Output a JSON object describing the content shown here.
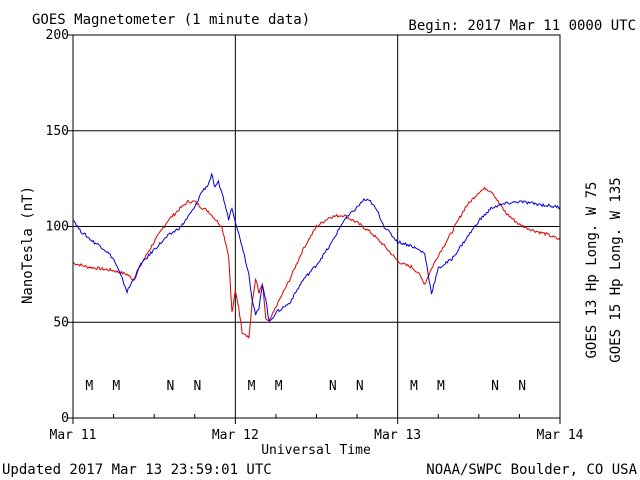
{
  "header": {
    "title": "GOES Magnetometer (1 minute data)",
    "begin": "Begin:  2017 Mar 11 0000 UTC"
  },
  "footer": {
    "updated": "Updated 2017 Mar 13 23:59:01 UTC",
    "source": "NOAA/SWPC Boulder, CO USA"
  },
  "colors": {
    "goes13": "#dd0000",
    "goes15": "#0000dd",
    "grid": "#000000"
  },
  "chart_data": {
    "type": "line",
    "title": "GOES Magnetometer (1 minute data)",
    "xlabel": "Universal Time",
    "ylabel": "NanoTesla (nT)",
    "xlim": [
      0,
      72
    ],
    "ylim": [
      0,
      200
    ],
    "x_unit": "hours since 2017 Mar 11 0000 UTC",
    "x_ticks": [
      {
        "value": 0,
        "label": "Mar 11"
      },
      {
        "value": 24,
        "label": "Mar 12"
      },
      {
        "value": 48,
        "label": "Mar 13"
      },
      {
        "value": 72,
        "label": "Mar 14"
      }
    ],
    "y_ticks": [
      0,
      50,
      100,
      150,
      200
    ],
    "grid": true,
    "series": [
      {
        "name": "GOES 13 Hp  Long. W 75",
        "color": "#dd0000",
        "x": [
          0,
          2,
          4,
          6,
          8,
          9,
          10,
          12,
          14,
          16,
          17,
          18,
          19,
          20,
          21,
          22,
          23,
          23.5,
          24,
          24.5,
          25,
          25.5,
          26,
          26.5,
          27,
          27.5,
          28,
          28.5,
          29,
          30,
          32,
          34,
          36,
          38,
          40,
          42,
          44,
          46,
          48,
          49,
          50,
          51,
          52,
          53,
          54,
          56,
          58,
          60,
          61,
          62,
          63,
          64,
          66,
          68,
          70,
          72
        ],
        "values": [
          81,
          79,
          78,
          77,
          75,
          72,
          80,
          92,
          103,
          110,
          113,
          113,
          110,
          108,
          104,
          100,
          85,
          55,
          66,
          58,
          45,
          44,
          42,
          60,
          73,
          65,
          70,
          52,
          50,
          58,
          72,
          88,
          100,
          105,
          106,
          102,
          97,
          90,
          82,
          80,
          79,
          76,
          70,
          78,
          85,
          97,
          110,
          118,
          120,
          118,
          112,
          107,
          101,
          98,
          96,
          93
        ]
      },
      {
        "name": "GOES 15 Hp  Long. W 135",
        "color": "#0000dd",
        "x": [
          0,
          1,
          2,
          3,
          4,
          5,
          6,
          7,
          8,
          10,
          12,
          14,
          16,
          18,
          19,
          20,
          20.5,
          21,
          21.5,
          22,
          23,
          23.5,
          24,
          24.5,
          25,
          26,
          26.5,
          27,
          27.5,
          28,
          28.5,
          29,
          30,
          32,
          34,
          36,
          38,
          40,
          42,
          43,
          44,
          45,
          46,
          48,
          50,
          52,
          53,
          54,
          56,
          58,
          60,
          62,
          64,
          66,
          68,
          70,
          72
        ],
        "values": [
          104,
          98,
          95,
          92,
          90,
          87,
          83,
          75,
          66,
          80,
          88,
          95,
          100,
          110,
          118,
          122,
          127,
          120,
          123,
          118,
          104,
          110,
          103,
          96,
          90,
          75,
          62,
          54,
          57,
          70,
          62,
          50,
          55,
          60,
          72,
          80,
          90,
          103,
          110,
          114,
          113,
          108,
          100,
          92,
          90,
          86,
          65,
          78,
          83,
          93,
          103,
          110,
          112,
          113,
          112,
          111,
          110
        ]
      }
    ],
    "markers": [
      {
        "label": "M",
        "x": 2.4,
        "color": "#dd0000"
      },
      {
        "label": "M",
        "x": 6.4,
        "color": "#0000dd"
      },
      {
        "label": "N",
        "x": 14.4,
        "color": "#dd0000"
      },
      {
        "label": "N",
        "x": 18.4,
        "color": "#0000dd"
      },
      {
        "label": "M",
        "x": 26.4,
        "color": "#dd0000"
      },
      {
        "label": "M",
        "x": 30.4,
        "color": "#0000dd"
      },
      {
        "label": "N",
        "x": 38.4,
        "color": "#dd0000"
      },
      {
        "label": "N",
        "x": 42.4,
        "color": "#0000dd"
      },
      {
        "label": "M",
        "x": 50.4,
        "color": "#dd0000"
      },
      {
        "label": "M",
        "x": 54.4,
        "color": "#0000dd"
      },
      {
        "label": "N",
        "x": 62.4,
        "color": "#dd0000"
      },
      {
        "label": "N",
        "x": 66.4,
        "color": "#0000dd"
      }
    ]
  }
}
